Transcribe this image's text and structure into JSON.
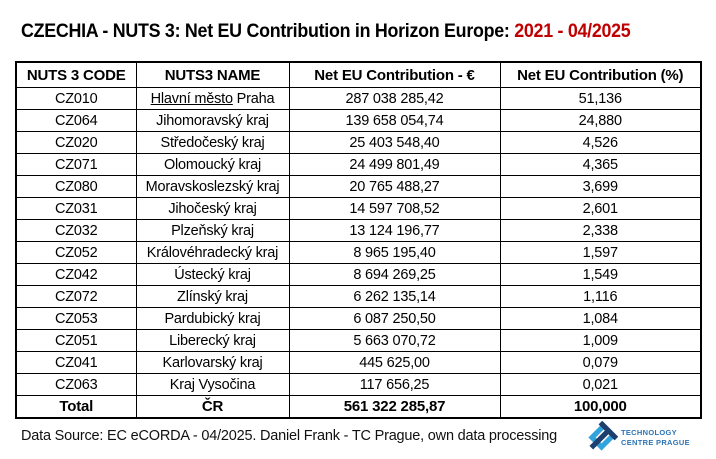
{
  "title": {
    "main": "CZECHIA - NUTS 3: Net EU Contribution in Horizon Europe: ",
    "period": "2021 - 04/2025",
    "period_color": "#c00000"
  },
  "table": {
    "headers": [
      "NUTS 3 CODE",
      "NUTS3 NAME",
      "Net EU Contribution - €",
      "Net EU Contribution (%)"
    ],
    "rows": [
      {
        "code": "CZ010",
        "name_underlined": "Hlavní město",
        "name_rest": " Praha",
        "eur": "287 038 285,42",
        "pct": "51,136"
      },
      {
        "code": "CZ064",
        "name": "Jihomoravský kraj",
        "eur": "139 658 054,74",
        "pct": "24,880"
      },
      {
        "code": "CZ020",
        "name": "Středočeský kraj",
        "eur": "25 403 548,40",
        "pct": "4,526"
      },
      {
        "code": "CZ071",
        "name": "Olomoucký kraj",
        "eur": "24 499 801,49",
        "pct": "4,365"
      },
      {
        "code": "CZ080",
        "name": "Moravskoslezský kraj",
        "eur": "20 765 488,27",
        "pct": "3,699"
      },
      {
        "code": "CZ031",
        "name": "Jihočeský kraj",
        "eur": "14 597 708,52",
        "pct": "2,601"
      },
      {
        "code": "CZ032",
        "name": "Plzeňský kraj",
        "eur": "13 124 196,77",
        "pct": "2,338"
      },
      {
        "code": "CZ052",
        "name": "Královéhradecký kraj",
        "eur": "8 965 195,40",
        "pct": "1,597"
      },
      {
        "code": "CZ042",
        "name": "Ústecký kraj",
        "eur": "8 694 269,25",
        "pct": "1,549"
      },
      {
        "code": "CZ072",
        "name": "Zlínský kraj",
        "eur": "6 262 135,14",
        "pct": "1,116"
      },
      {
        "code": "CZ053",
        "name": "Pardubický kraj",
        "eur": "6 087 250,50",
        "pct": "1,084"
      },
      {
        "code": "CZ051",
        "name": "Liberecký kraj",
        "eur": "5 663 070,72",
        "pct": "1,009"
      },
      {
        "code": "CZ041",
        "name": "Karlovarský kraj",
        "eur": "445 625,00",
        "pct": "0,079"
      },
      {
        "code": "CZ063",
        "name": "Kraj Vysočina",
        "eur": "117 656,25",
        "pct": "0,021"
      }
    ],
    "total_row": {
      "code": "Total",
      "name": "ČR",
      "eur": "561 322 285,87",
      "pct": "100,000"
    }
  },
  "footer": {
    "source": "Data Source: EC eCORDA - 04/2025. Daniel Frank - TC Prague, own data processing"
  },
  "logo": {
    "line1": "TECHNOLOGY",
    "line2": "CENTRE PRAGUE",
    "text_color": "#2e74b5",
    "icon_light_blue": "#33a3dc",
    "icon_dark_blue": "#1d3f6e"
  }
}
